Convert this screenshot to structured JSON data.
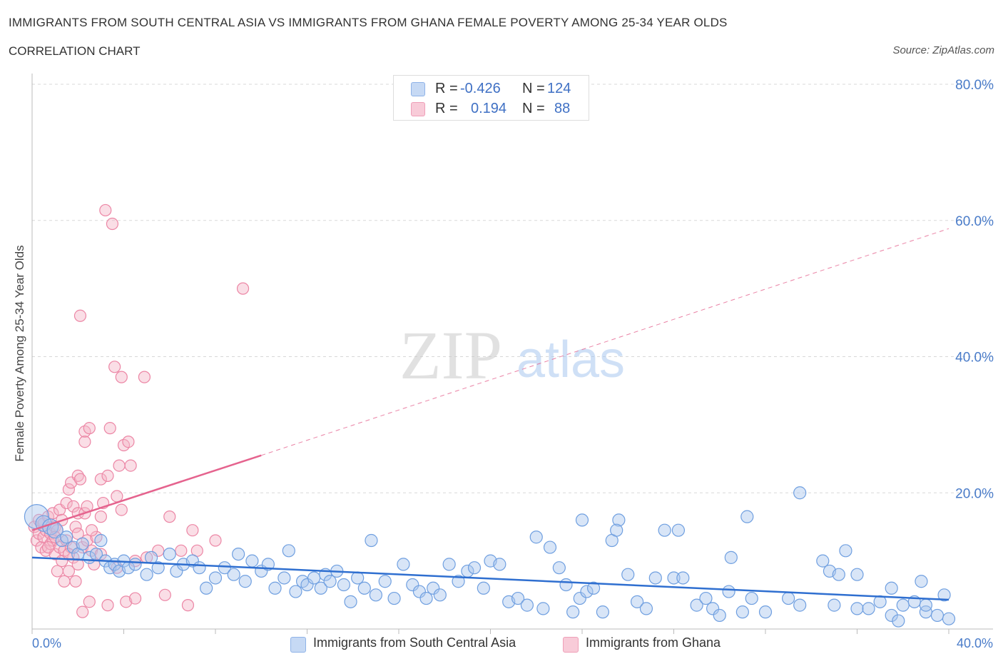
{
  "title": "IMMIGRANTS FROM SOUTH CENTRAL ASIA VS IMMIGRANTS FROM GHANA FEMALE POVERTY AMONG 25-34 YEAR OLDS",
  "subtitle": "CORRELATION CHART",
  "source": "Source: ZipAtlas.com",
  "watermark_zip": "ZIP",
  "watermark_atlas": "atlas",
  "colors": {
    "blue_fill": "#a8c6ee",
    "blue_stroke": "#6f9fe0",
    "blue_line": "#2f6fd0",
    "pink_fill": "#f5b5c8",
    "pink_stroke": "#ec86a5",
    "pink_line": "#e5638e",
    "tick_text": "#4a7cc9",
    "grid": "#d8d8d8"
  },
  "legend": {
    "rows": [
      {
        "r_label": "R =",
        "r_value": "-0.426",
        "n_label": "N =",
        "n_value": "124"
      },
      {
        "r_label": "R =",
        "r_value": "0.194",
        "n_label": "N =",
        "n_value": "88"
      }
    ]
  },
  "bottom_legend": {
    "blue": "Immigrants from South Central Asia",
    "pink": "Immigrants from Ghana"
  },
  "chart_data": {
    "type": "scatter",
    "title": "IMMIGRANTS FROM SOUTH CENTRAL ASIA VS IMMIGRANTS FROM GHANA FEMALE POVERTY AMONG 25-34 YEAR OLDS",
    "xlabel": "",
    "ylabel": "Female Poverty Among 25-34 Year Olds",
    "xlim": [
      0,
      40
    ],
    "ylim": [
      0,
      80
    ],
    "x_tick_labels": [
      "0.0%",
      "40.0%"
    ],
    "y_tick_values": [
      20,
      40,
      60,
      80
    ],
    "y_tick_labels": [
      "20.0%",
      "40.0%",
      "60.0%",
      "80.0%"
    ],
    "legend_position": "top-center",
    "series": [
      {
        "name": "Immigrants from South Central Asia",
        "R": -0.426,
        "N": 124,
        "trend": {
          "x0": 0,
          "y0": 10.5,
          "x1": 40,
          "y1": 4.3
        },
        "points": [
          [
            0.2,
            16.5
          ],
          [
            0.5,
            15.5
          ],
          [
            0.8,
            15
          ],
          [
            1.0,
            14.5
          ],
          [
            1.3,
            13
          ],
          [
            1.5,
            13.5
          ],
          [
            1.8,
            12
          ],
          [
            2.0,
            11
          ],
          [
            2.2,
            12.5
          ],
          [
            2.5,
            10.5
          ],
          [
            2.8,
            11
          ],
          [
            3.0,
            13
          ],
          [
            3.2,
            10
          ],
          [
            3.4,
            9
          ],
          [
            3.6,
            9.5
          ],
          [
            3.8,
            8.5
          ],
          [
            4.0,
            10
          ],
          [
            4.2,
            9
          ],
          [
            4.5,
            9.5
          ],
          [
            5.0,
            8
          ],
          [
            5.2,
            10.5
          ],
          [
            5.5,
            9
          ],
          [
            6.0,
            11
          ],
          [
            6.3,
            8.5
          ],
          [
            6.6,
            9.5
          ],
          [
            7.0,
            10
          ],
          [
            7.3,
            9
          ],
          [
            7.6,
            6
          ],
          [
            8.0,
            7.5
          ],
          [
            8.4,
            9
          ],
          [
            8.8,
            8
          ],
          [
            9.0,
            11
          ],
          [
            9.3,
            7
          ],
          [
            9.6,
            10
          ],
          [
            10.0,
            8.5
          ],
          [
            10.3,
            9.5
          ],
          [
            10.6,
            6
          ],
          [
            11.0,
            7.5
          ],
          [
            11.2,
            11.5
          ],
          [
            11.5,
            5.5
          ],
          [
            11.8,
            7
          ],
          [
            12.0,
            6.5
          ],
          [
            12.3,
            7.5
          ],
          [
            12.6,
            6
          ],
          [
            12.8,
            8
          ],
          [
            13.0,
            7
          ],
          [
            13.3,
            8.5
          ],
          [
            13.6,
            6.5
          ],
          [
            13.9,
            4
          ],
          [
            14.2,
            7.5
          ],
          [
            14.5,
            6
          ],
          [
            14.8,
            13
          ],
          [
            15.0,
            5
          ],
          [
            15.4,
            7
          ],
          [
            15.8,
            4.5
          ],
          [
            16.2,
            9.5
          ],
          [
            16.6,
            6.5
          ],
          [
            16.9,
            5.5
          ],
          [
            17.2,
            4.5
          ],
          [
            17.5,
            6
          ],
          [
            17.8,
            5
          ],
          [
            18.2,
            9.5
          ],
          [
            18.6,
            7
          ],
          [
            19.0,
            8.5
          ],
          [
            19.3,
            9
          ],
          [
            19.7,
            6
          ],
          [
            20.0,
            10
          ],
          [
            20.4,
            9.5
          ],
          [
            20.8,
            4
          ],
          [
            21.2,
            4.5
          ],
          [
            21.6,
            3.5
          ],
          [
            22.0,
            13.5
          ],
          [
            22.3,
            3
          ],
          [
            22.6,
            12
          ],
          [
            23.0,
            9
          ],
          [
            23.3,
            6.5
          ],
          [
            23.6,
            2.5
          ],
          [
            23.9,
            4.5
          ],
          [
            24.2,
            5.5
          ],
          [
            24.5,
            6
          ],
          [
            24.9,
            2.5
          ],
          [
            25.3,
            13
          ],
          [
            25.6,
            16
          ],
          [
            26.0,
            8
          ],
          [
            26.4,
            4
          ],
          [
            26.8,
            3
          ],
          [
            27.2,
            7.5
          ],
          [
            27.6,
            14.5
          ],
          [
            28.0,
            7.5
          ],
          [
            28.4,
            7.5
          ],
          [
            29.0,
            3.5
          ],
          [
            29.4,
            4.5
          ],
          [
            29.7,
            3
          ],
          [
            30.0,
            2
          ],
          [
            30.4,
            5.5
          ],
          [
            31.0,
            2.5
          ],
          [
            31.4,
            4.5
          ],
          [
            32.0,
            2.5
          ],
          [
            33.0,
            4.5
          ],
          [
            33.5,
            3.5
          ],
          [
            35.0,
            3.5
          ],
          [
            36.0,
            3
          ],
          [
            38.0,
            3.5
          ],
          [
            39.0,
            2.5
          ],
          [
            37.5,
            2
          ],
          [
            36.5,
            3
          ],
          [
            38.5,
            4
          ],
          [
            39.5,
            2
          ],
          [
            40.0,
            1.5
          ],
          [
            39.0,
            3.5
          ],
          [
            24.0,
            16
          ],
          [
            25.5,
            14.5
          ],
          [
            28.2,
            14.5
          ],
          [
            30.5,
            10.5
          ],
          [
            31.2,
            16.5
          ],
          [
            33.5,
            20
          ],
          [
            34.5,
            10
          ],
          [
            35.5,
            11.5
          ],
          [
            36.0,
            8
          ],
          [
            37.5,
            6
          ],
          [
            37.0,
            4
          ],
          [
            38.8,
            7
          ],
          [
            39.8,
            5
          ],
          [
            34.8,
            8.5
          ],
          [
            35.2,
            8
          ],
          [
            37.8,
            1.2
          ]
        ]
      },
      {
        "name": "Immigrants from Ghana",
        "R": 0.194,
        "N": 88,
        "trend_solid": {
          "x0": 0,
          "y0": 14.5,
          "x1": 10,
          "y1": 25.5
        },
        "trend_dashed": {
          "x0": 10,
          "y0": 25.5,
          "x1": 40,
          "y1": 58.8
        },
        "points": [
          [
            0.1,
            15
          ],
          [
            0.2,
            13
          ],
          [
            0.3,
            14
          ],
          [
            0.3,
            16
          ],
          [
            0.4,
            12
          ],
          [
            0.5,
            15.5
          ],
          [
            0.5,
            13.5
          ],
          [
            0.6,
            14.5
          ],
          [
            0.6,
            11.5
          ],
          [
            0.7,
            16.5
          ],
          [
            0.8,
            12.5
          ],
          [
            0.8,
            14
          ],
          [
            0.9,
            17
          ],
          [
            0.9,
            13
          ],
          [
            1.0,
            11
          ],
          [
            1.0,
            15
          ],
          [
            1.1,
            14.5
          ],
          [
            1.1,
            8.5
          ],
          [
            1.2,
            12
          ],
          [
            1.2,
            17.5
          ],
          [
            1.3,
            16
          ],
          [
            1.3,
            10
          ],
          [
            1.4,
            11.5
          ],
          [
            1.4,
            7
          ],
          [
            1.5,
            18.5
          ],
          [
            1.5,
            13
          ],
          [
            1.6,
            20.5
          ],
          [
            1.6,
            8.5
          ],
          [
            1.7,
            21.5
          ],
          [
            1.7,
            12
          ],
          [
            1.8,
            18
          ],
          [
            1.8,
            10.5
          ],
          [
            1.9,
            15
          ],
          [
            1.9,
            7
          ],
          [
            2.0,
            22.5
          ],
          [
            2.0,
            17
          ],
          [
            2.0,
            14
          ],
          [
            2.0,
            9.5
          ],
          [
            2.1,
            46
          ],
          [
            2.1,
            22
          ],
          [
            2.2,
            12
          ],
          [
            2.2,
            2.5
          ],
          [
            2.3,
            29
          ],
          [
            2.3,
            27.5
          ],
          [
            2.3,
            17
          ],
          [
            2.4,
            18
          ],
          [
            2.4,
            13
          ],
          [
            2.5,
            29.5
          ],
          [
            2.5,
            4
          ],
          [
            2.6,
            11.5
          ],
          [
            2.7,
            9.5
          ],
          [
            2.8,
            13.5
          ],
          [
            3.0,
            22
          ],
          [
            3.0,
            16.5
          ],
          [
            3.0,
            11
          ],
          [
            3.1,
            18.5
          ],
          [
            3.2,
            61.5
          ],
          [
            3.3,
            22.5
          ],
          [
            3.3,
            3.5
          ],
          [
            3.4,
            29.5
          ],
          [
            3.5,
            59.5
          ],
          [
            3.6,
            38.5
          ],
          [
            3.7,
            19.5
          ],
          [
            3.7,
            9
          ],
          [
            3.8,
            24
          ],
          [
            3.9,
            17.5
          ],
          [
            3.9,
            37
          ],
          [
            4.0,
            27
          ],
          [
            4.1,
            4
          ],
          [
            4.2,
            27.5
          ],
          [
            4.3,
            24
          ],
          [
            4.5,
            10
          ],
          [
            4.5,
            4.5
          ],
          [
            4.9,
            37
          ],
          [
            5.0,
            10.5
          ],
          [
            5.5,
            11.5
          ],
          [
            5.8,
            5
          ],
          [
            6.0,
            16.5
          ],
          [
            6.5,
            11.5
          ],
          [
            6.8,
            3.5
          ],
          [
            7.0,
            14.5
          ],
          [
            7.2,
            11.5
          ],
          [
            8.0,
            13
          ],
          [
            9.2,
            50
          ],
          [
            1.0,
            13.5
          ],
          [
            0.7,
            12
          ],
          [
            1.6,
            11
          ],
          [
            2.6,
            14.5
          ]
        ]
      }
    ]
  }
}
